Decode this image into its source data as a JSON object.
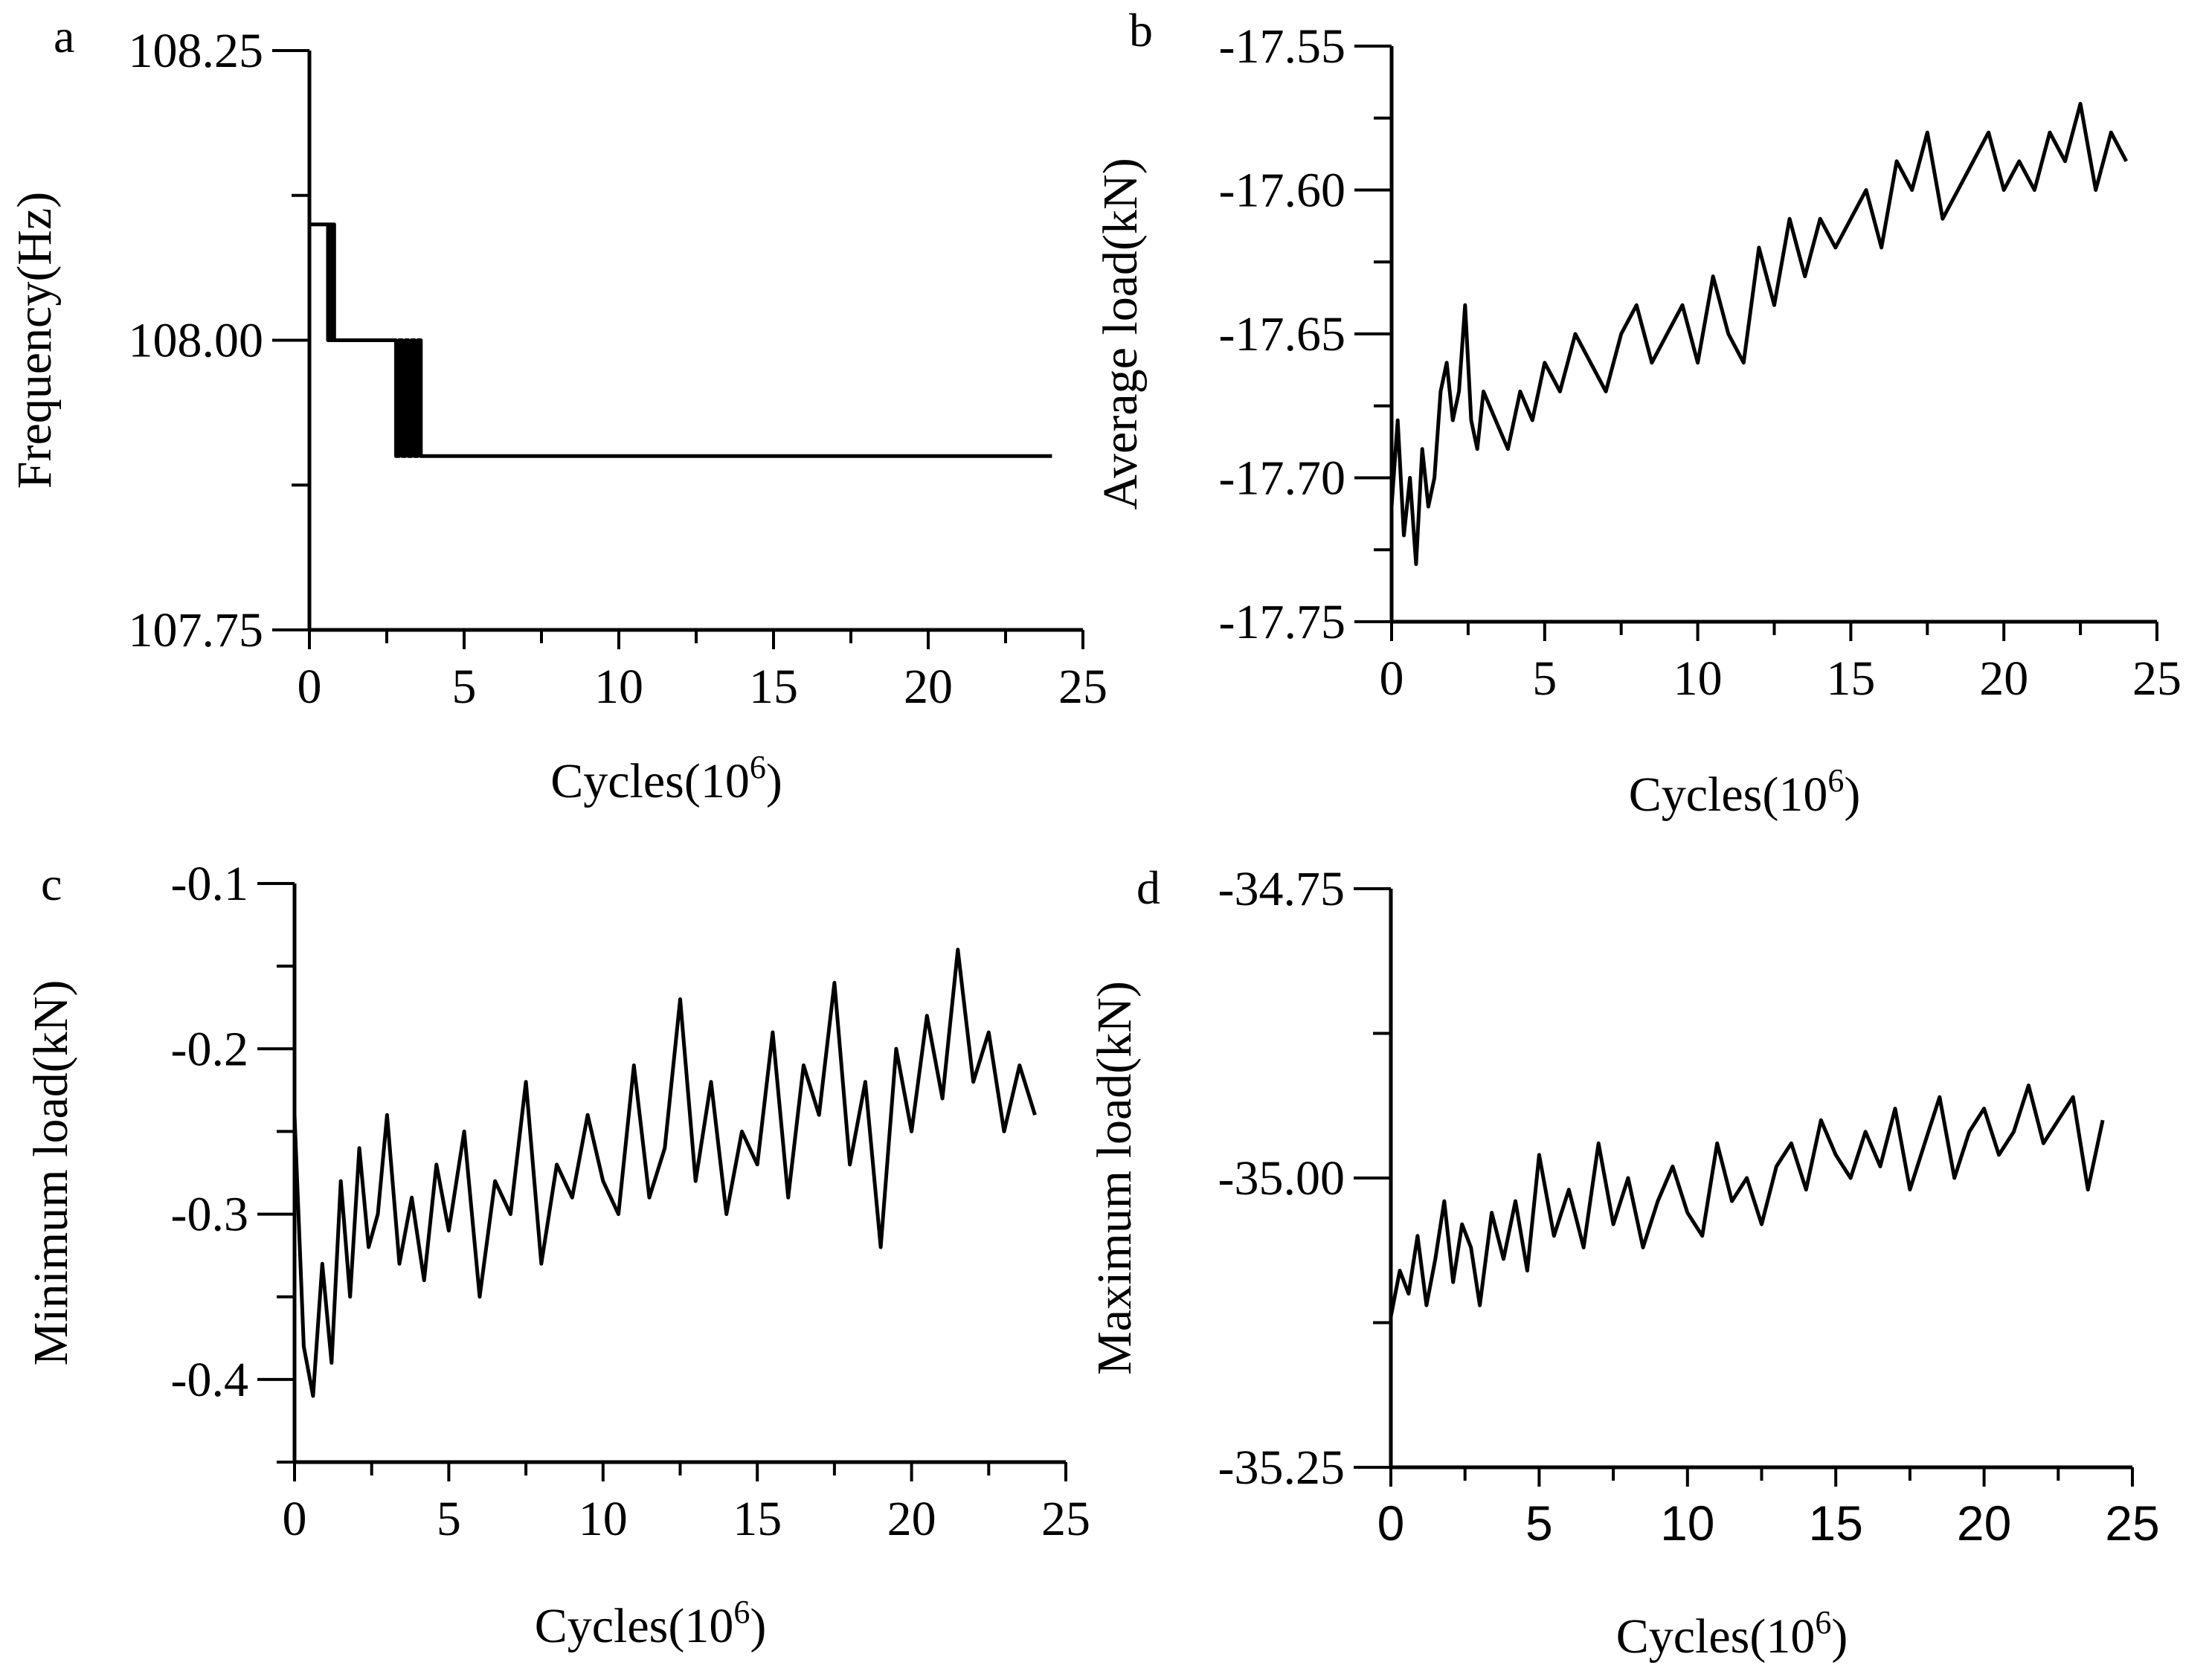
{
  "chart_data": [
    {
      "panel": "a",
      "type": "line",
      "xlabel": "Cycles(10",
      "xlabel_sup": "6",
      "xlabel_close": ")",
      "ylabel": "Frequency(Hz)",
      "xlim": [
        0,
        25
      ],
      "ylim": [
        107.75,
        108.25
      ],
      "xticks": [
        "0",
        "5",
        "10",
        "15",
        "20",
        "25"
      ],
      "yticks": [
        "107.75",
        "108.00",
        "108.25"
      ],
      "series": [
        {
          "name": "frequency",
          "x": [
            0,
            0.6,
            0.6,
            0.65,
            0.65,
            0.7,
            0.7,
            0.75,
            0.75,
            0.8,
            0.8,
            2.8,
            2.8,
            2.9,
            2.9,
            3.0,
            3.0,
            3.1,
            3.1,
            3.2,
            3.2,
            3.3,
            3.3,
            3.4,
            3.4,
            3.5,
            3.5,
            3.6,
            3.6,
            24
          ],
          "y": [
            108.1,
            108.1,
            108.0,
            108.0,
            108.1,
            108.1,
            108.0,
            108.0,
            108.1,
            108.1,
            108.0,
            108.0,
            107.9,
            107.9,
            108.0,
            108.0,
            107.9,
            107.9,
            108.0,
            108.0,
            107.9,
            107.9,
            108.0,
            108.0,
            107.9,
            107.9,
            108.0,
            108.0,
            107.9,
            107.9
          ]
        }
      ]
    },
    {
      "panel": "b",
      "type": "line",
      "xlabel": "Cycles(10",
      "xlabel_sup": "6",
      "xlabel_close": ")",
      "ylabel": "Average load(kN)",
      "xlim": [
        0,
        25
      ],
      "ylim": [
        -17.75,
        -17.55
      ],
      "xticks": [
        "0",
        "5",
        "10",
        "15",
        "20",
        "25"
      ],
      "yticks": [
        "-17.55",
        "-17.60",
        "-17.65",
        "-17.70",
        "-17.75"
      ],
      "series": [
        {
          "name": "average load",
          "x": [
            0,
            0.2,
            0.4,
            0.6,
            0.8,
            1.0,
            1.2,
            1.4,
            1.6,
            1.8,
            2.0,
            2.2,
            2.4,
            2.6,
            2.8,
            3.0,
            3.4,
            3.8,
            4.2,
            4.6,
            5.0,
            5.5,
            6.0,
            6.5,
            7.0,
            7.5,
            8.0,
            8.5,
            9.0,
            9.5,
            10.0,
            10.5,
            11.0,
            11.5,
            12.0,
            12.5,
            13.0,
            13.5,
            14.0,
            14.5,
            15.0,
            15.5,
            16.0,
            16.5,
            17.0,
            17.5,
            18.0,
            18.5,
            19.0,
            19.5,
            20.0,
            20.5,
            21.0,
            21.5,
            22.0,
            22.5,
            23.0,
            23.5,
            24.0
          ],
          "y": [
            -17.71,
            -17.68,
            -17.72,
            -17.7,
            -17.73,
            -17.69,
            -17.71,
            -17.7,
            -17.67,
            -17.66,
            -17.68,
            -17.67,
            -17.64,
            -17.68,
            -17.69,
            -17.67,
            -17.68,
            -17.69,
            -17.67,
            -17.68,
            -17.66,
            -17.67,
            -17.65,
            -17.66,
            -17.67,
            -17.65,
            -17.64,
            -17.66,
            -17.65,
            -17.64,
            -17.66,
            -17.63,
            -17.65,
            -17.66,
            -17.62,
            -17.64,
            -17.61,
            -17.63,
            -17.61,
            -17.62,
            -17.61,
            -17.6,
            -17.62,
            -17.59,
            -17.6,
            -17.58,
            -17.61,
            -17.6,
            -17.59,
            -17.58,
            -17.6,
            -17.59,
            -17.6,
            -17.58,
            -17.59,
            -17.57,
            -17.6,
            -17.58,
            -17.59
          ]
        }
      ]
    },
    {
      "panel": "c",
      "type": "line",
      "xlabel": "Cycles(10",
      "xlabel_sup": "6",
      "xlabel_close": ")",
      "ylabel": "Minimum load(kN)",
      "xlim": [
        0,
        25
      ],
      "ylim": [
        -0.45,
        -0.1
      ],
      "xticks": [
        "0",
        "5",
        "10",
        "15",
        "20",
        "25"
      ],
      "yticks": [
        "-0.1",
        "-0.2",
        "-0.3",
        "-0.4"
      ],
      "series": [
        {
          "name": "minimum load",
          "x": [
            0,
            0.3,
            0.6,
            0.9,
            1.2,
            1.5,
            1.8,
            2.1,
            2.4,
            2.7,
            3.0,
            3.4,
            3.8,
            4.2,
            4.6,
            5.0,
            5.5,
            6.0,
            6.5,
            7.0,
            7.5,
            8.0,
            8.5,
            9.0,
            9.5,
            10.0,
            10.5,
            11.0,
            11.5,
            12.0,
            12.5,
            13.0,
            13.5,
            14.0,
            14.5,
            15.0,
            15.5,
            16.0,
            16.5,
            17.0,
            17.5,
            18.0,
            18.5,
            19.0,
            19.5,
            20.0,
            20.5,
            21.0,
            21.5,
            22.0,
            22.5,
            23.0,
            23.5,
            24.0
          ],
          "y": [
            -0.24,
            -0.38,
            -0.41,
            -0.33,
            -0.39,
            -0.28,
            -0.35,
            -0.26,
            -0.32,
            -0.3,
            -0.24,
            -0.33,
            -0.29,
            -0.34,
            -0.27,
            -0.31,
            -0.25,
            -0.35,
            -0.28,
            -0.3,
            -0.22,
            -0.33,
            -0.27,
            -0.29,
            -0.24,
            -0.28,
            -0.3,
            -0.21,
            -0.29,
            -0.26,
            -0.17,
            -0.28,
            -0.22,
            -0.3,
            -0.25,
            -0.27,
            -0.19,
            -0.29,
            -0.21,
            -0.24,
            -0.16,
            -0.27,
            -0.22,
            -0.32,
            -0.2,
            -0.25,
            -0.18,
            -0.23,
            -0.14,
            -0.22,
            -0.19,
            -0.25,
            -0.21,
            -0.24
          ]
        }
      ]
    },
    {
      "panel": "d",
      "type": "line",
      "xlabel": "Cycles(10",
      "xlabel_sup": "6",
      "xlabel_close": ")",
      "ylabel": "Maximum load(kN)",
      "xlim": [
        0,
        25
      ],
      "ylim": [
        -35.25,
        -34.75
      ],
      "xticks": [
        "0",
        "5",
        "10",
        "15",
        "20",
        "25"
      ],
      "yticks": [
        "-34.75",
        "-35.00",
        "-35.25"
      ],
      "series": [
        {
          "name": "maximum load",
          "x": [
            0,
            0.3,
            0.6,
            0.9,
            1.2,
            1.5,
            1.8,
            2.1,
            2.4,
            2.7,
            3.0,
            3.4,
            3.8,
            4.2,
            4.6,
            5.0,
            5.5,
            6.0,
            6.5,
            7.0,
            7.5,
            8.0,
            8.5,
            9.0,
            9.5,
            10.0,
            10.5,
            11.0,
            11.5,
            12.0,
            12.5,
            13.0,
            13.5,
            14.0,
            14.5,
            15.0,
            15.5,
            16.0,
            16.5,
            17.0,
            17.5,
            18.0,
            18.5,
            19.0,
            19.5,
            20.0,
            20.5,
            21.0,
            21.5,
            22.0,
            22.5,
            23.0,
            23.5,
            24.0
          ],
          "y": [
            -35.12,
            -35.08,
            -35.1,
            -35.05,
            -35.11,
            -35.07,
            -35.02,
            -35.09,
            -35.04,
            -35.06,
            -35.11,
            -35.03,
            -35.07,
            -35.02,
            -35.08,
            -34.98,
            -35.05,
            -35.01,
            -35.06,
            -34.97,
            -35.04,
            -35.0,
            -35.06,
            -35.02,
            -34.99,
            -35.03,
            -35.05,
            -34.97,
            -35.02,
            -35.0,
            -35.04,
            -34.99,
            -34.97,
            -35.01,
            -34.95,
            -34.98,
            -35.0,
            -34.96,
            -34.99,
            -34.94,
            -35.01,
            -34.97,
            -34.93,
            -35.0,
            -34.96,
            -34.94,
            -34.98,
            -34.96,
            -34.92,
            -34.97,
            -34.95,
            -34.93,
            -35.01,
            -34.95
          ]
        }
      ]
    }
  ]
}
